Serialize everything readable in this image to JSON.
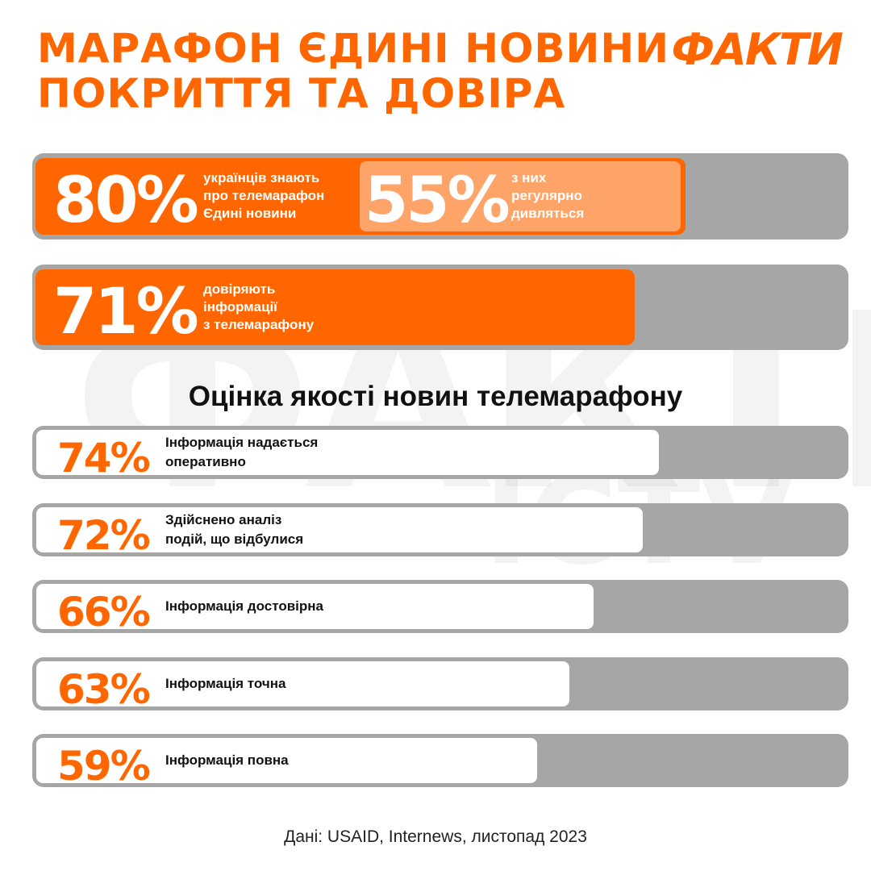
{
  "title": [
    "МАРАФОН ЄДИНІ НОВИНИ",
    "ПОКРИТТЯ ТА ДОВІРА"
  ],
  "logo": "ФАКТИ",
  "watermark": "ФАКТИ ICTV",
  "colors": {
    "accent": "#ff6600",
    "light_accent": "#ffa468",
    "track": "#a6a6a6"
  },
  "chart_data": {
    "type": "bar",
    "title": "Оцінка якості новин телемарафону",
    "top": [
      {
        "value": 80,
        "label_text": "80%",
        "desc": [
          "українців знають",
          "про телемарафон",
          "Єдині новини"
        ],
        "sub": {
          "value": 55,
          "label_text": "55%",
          "desc": [
            "з них",
            "регулярно",
            "дивляться"
          ]
        }
      },
      {
        "value": 71,
        "label_text": "71%",
        "desc": [
          "довіряють",
          "інформації",
          "з телемарафону"
        ]
      }
    ],
    "categories": [
      "Інформація надається оперативно",
      "Здійснено аналіз подій, що відбулися",
      "Інформація достовірна",
      "Інформація точна",
      "Інформація повна"
    ],
    "items": [
      {
        "value": 74,
        "label_text": "74%",
        "desc": [
          "Інформація надається",
          "оперативно"
        ]
      },
      {
        "value": 72,
        "label_text": "72%",
        "desc": [
          "Здійснено аналіз",
          "подій, що відбулися"
        ]
      },
      {
        "value": 66,
        "label_text": "66%",
        "desc": [
          "Інформація достовірна"
        ]
      },
      {
        "value": 63,
        "label_text": "63%",
        "desc": [
          "Інформація точна"
        ]
      },
      {
        "value": 59,
        "label_text": "59%",
        "desc": [
          "Інформація повна"
        ]
      }
    ],
    "ylim": [
      0,
      100
    ]
  },
  "footer": "Дані: USAID, Internews, листопад 2023"
}
